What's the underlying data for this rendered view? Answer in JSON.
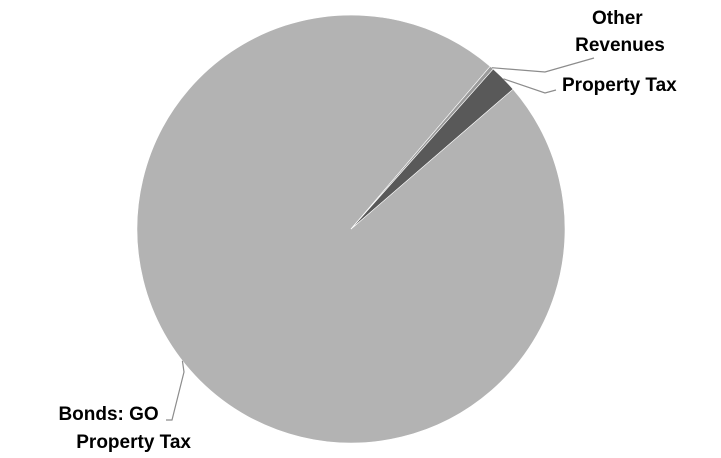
{
  "chart_data": {
    "type": "pie",
    "title": "",
    "series": [
      {
        "values": [
          97.6,
          0.3,
          2.1
        ]
      }
    ],
    "slices": [
      {
        "label_lines": [
          "Bonds: GO",
          "Property Tax"
        ],
        "value": 97.6,
        "color": "#b3b3b3"
      },
      {
        "label_lines": [
          "Other",
          "Revenues"
        ],
        "value": 0.3,
        "color": "#9a9a9a"
      },
      {
        "label_lines": [
          "Property Tax"
        ],
        "value": 2.1,
        "color": "#595959"
      }
    ],
    "legend": "none",
    "labels": "outside with leader lines"
  }
}
